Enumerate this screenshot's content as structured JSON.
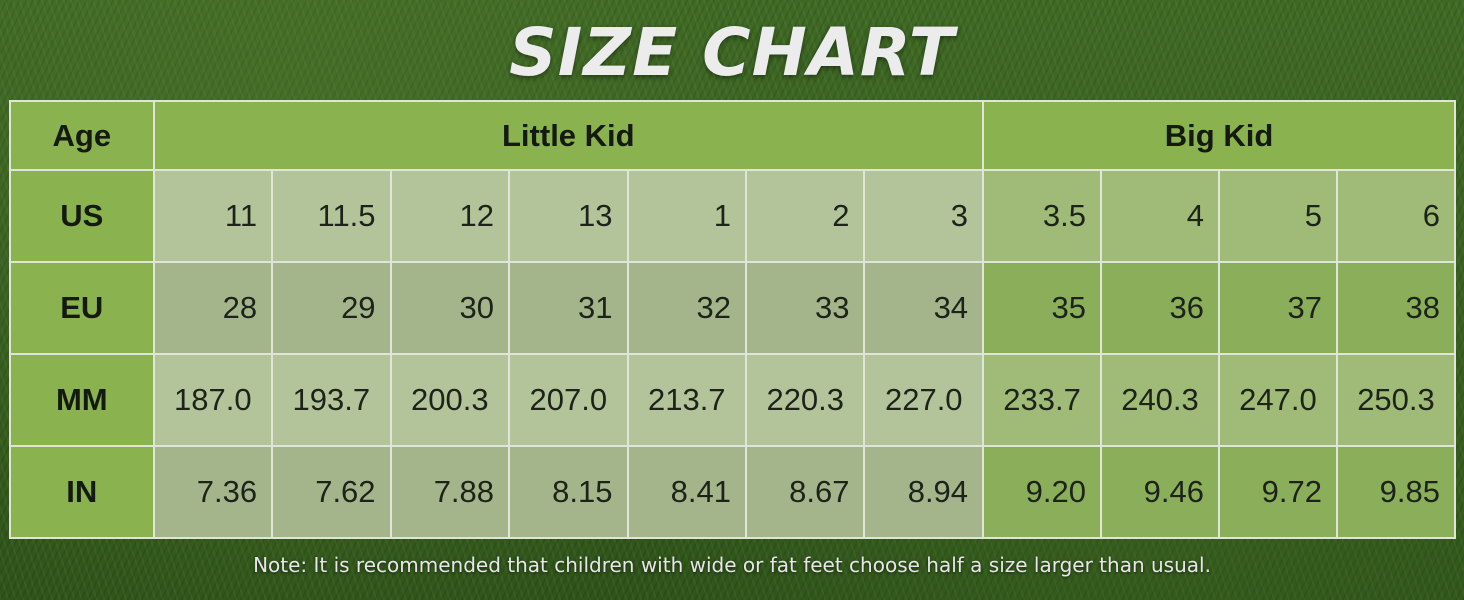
{
  "title": "SIZE CHART",
  "header": {
    "age_label": "Age",
    "group_little": "Little Kid",
    "group_big": "Big Kid"
  },
  "rows": [
    {
      "label": "US",
      "values": [
        "11",
        "11.5",
        "12",
        "13",
        "1",
        "2",
        "3",
        "3.5",
        "4",
        "5",
        "6"
      ]
    },
    {
      "label": "EU",
      "values": [
        "28",
        "29",
        "30",
        "31",
        "32",
        "33",
        "34",
        "35",
        "36",
        "37",
        "38"
      ]
    },
    {
      "label": "MM",
      "values": [
        "187.0",
        "193.7",
        "200.3",
        "207.0",
        "213.7",
        "220.3",
        "227.0",
        "233.7",
        "240.3",
        "247.0",
        "250.3"
      ]
    },
    {
      "label": "IN",
      "values": [
        "7.36",
        "7.62",
        "7.88",
        "8.15",
        "8.41",
        "8.67",
        "8.94",
        "9.20",
        "9.46",
        "9.72",
        "9.85"
      ]
    }
  ],
  "note": "Note: It is recommended that children with wide or fat feet choose half a size larger than usual."
}
